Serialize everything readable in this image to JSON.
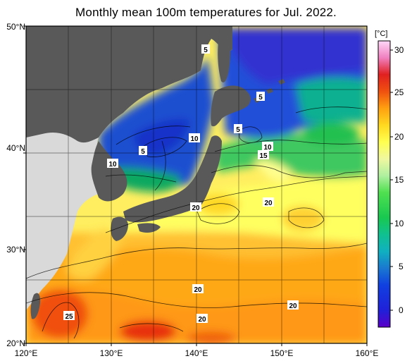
{
  "title": "Monthly mean 100m temperatures for Jul. 2022.",
  "map": {
    "lat_labels": [
      "50°N",
      "40°N",
      "30°N",
      "20°N"
    ],
    "lon_labels": [
      "120°E",
      "130°E",
      "140°E",
      "150°E",
      "160°E"
    ],
    "extent": {
      "lon_min": 120,
      "lon_max": 160,
      "lat_min": 20,
      "lat_max": 50
    },
    "contour_labels": [
      "5",
      "5",
      "5",
      "5",
      "10",
      "10",
      "10",
      "15",
      "20",
      "20",
      "20",
      "20",
      "20",
      "25"
    ],
    "colors": {
      "land": "#595959",
      "no_data": "#d9d9d9",
      "background": "#ffffff"
    }
  },
  "colorbar": {
    "unit": "[°C]",
    "ticks": [
      "30",
      "25",
      "20",
      "15",
      "10",
      "5",
      "0"
    ],
    "range": [
      -2,
      32
    ],
    "stops": [
      {
        "v": -2,
        "c": "#5a00c8"
      },
      {
        "v": 0,
        "c": "#2020d8"
      },
      {
        "v": 3,
        "c": "#1040e0"
      },
      {
        "v": 5,
        "c": "#1a78d0"
      },
      {
        "v": 7,
        "c": "#10b0c0"
      },
      {
        "v": 9,
        "c": "#10c090"
      },
      {
        "v": 11,
        "c": "#18c850"
      },
      {
        "v": 14,
        "c": "#50e050"
      },
      {
        "v": 16,
        "c": "#b0f0a0"
      },
      {
        "v": 18,
        "c": "#f0f8a0"
      },
      {
        "v": 20,
        "c": "#ffff50"
      },
      {
        "v": 22,
        "c": "#ffd820"
      },
      {
        "v": 24,
        "c": "#ffa010"
      },
      {
        "v": 26,
        "c": "#f05010"
      },
      {
        "v": 28,
        "c": "#e02020"
      },
      {
        "v": 30,
        "c": "#f080c0"
      },
      {
        "v": 32,
        "c": "#ffd8f8"
      }
    ]
  }
}
